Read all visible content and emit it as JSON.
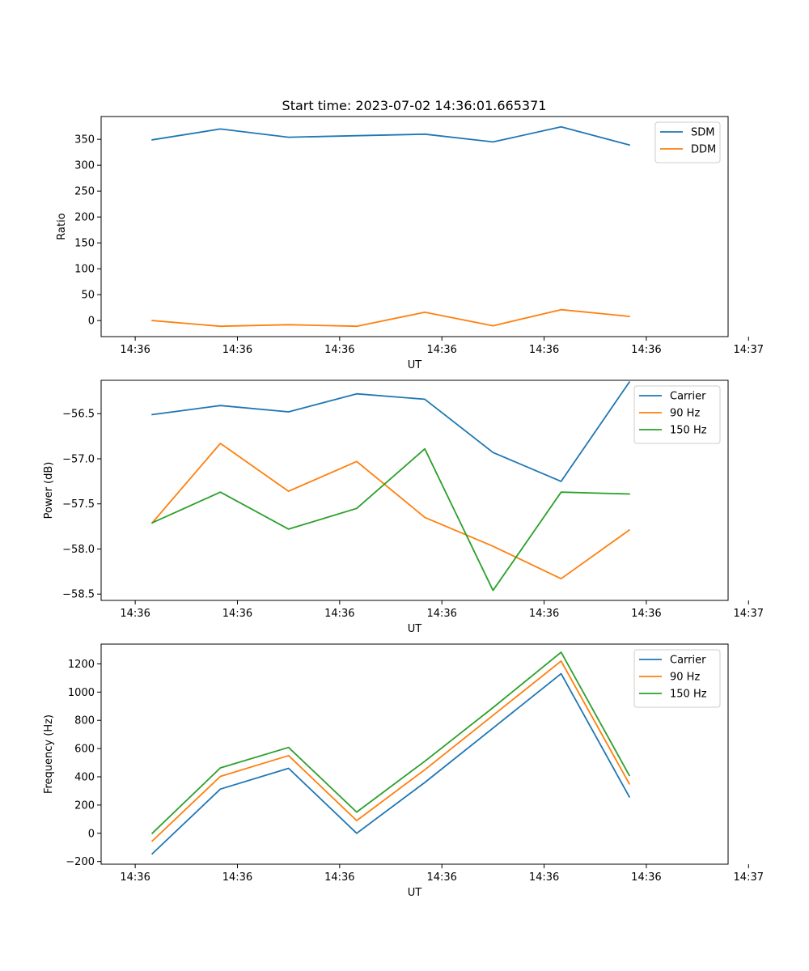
{
  "figure_title": "Start time: 2023-07-02 14:36:01.665371",
  "colors": {
    "blue": "#1f77b4",
    "orange": "#ff7f0e",
    "green": "#2ca02c"
  },
  "chart_data": [
    {
      "type": "line",
      "title": "Start time: 2023-07-02 14:36:01.665371",
      "xlabel": "UT",
      "ylabel": "Ratio",
      "xlim": [
        0,
        9.2
      ],
      "ylim": [
        -31,
        394
      ],
      "x": [
        0.75,
        1.75,
        2.75,
        3.75,
        4.75,
        5.75,
        6.75,
        7.75
      ],
      "xticks": [
        0.5,
        2,
        3.5,
        5,
        6.5,
        8,
        9.5
      ],
      "xtick_labels": [
        "14:36",
        "14:36",
        "14:36",
        "14:36",
        "14:36",
        "14:36",
        "14:37"
      ],
      "yticks": [
        0,
        50,
        100,
        150,
        200,
        250,
        300,
        350
      ],
      "ytick_labels": [
        "0",
        "50",
        "100",
        "150",
        "200",
        "250",
        "300",
        "350"
      ],
      "legend": "top-right",
      "series": [
        {
          "name": "SDM",
          "color": "#1f77b4",
          "values": [
            349,
            370,
            354,
            357,
            360,
            345,
            374,
            339
          ]
        },
        {
          "name": "DDM",
          "color": "#ff7f0e",
          "values": [
            0,
            -11,
            -8,
            -11,
            16,
            -10,
            21,
            8
          ]
        }
      ]
    },
    {
      "type": "line",
      "title": "",
      "xlabel": "UT",
      "ylabel": "Power (dB)",
      "xlim": [
        0,
        9.2
      ],
      "ylim": [
        -58.57,
        -56.13
      ],
      "x": [
        0.75,
        1.75,
        2.75,
        3.75,
        4.75,
        5.75,
        6.75,
        7.75
      ],
      "xticks": [
        0.5,
        2,
        3.5,
        5,
        6.5,
        8,
        9.5
      ],
      "xtick_labels": [
        "14:36",
        "14:36",
        "14:36",
        "14:36",
        "14:36",
        "14:36",
        "14:37"
      ],
      "yticks": [
        -58.5,
        -58.0,
        -57.5,
        -57.0,
        -56.5
      ],
      "ytick_labels": [
        "−58.5",
        "−58.0",
        "−57.5",
        "−57.0",
        "−56.5"
      ],
      "legend": "top-right",
      "series": [
        {
          "name": "Carrier",
          "color": "#1f77b4",
          "values": [
            -56.51,
            -56.41,
            -56.48,
            -56.28,
            -56.34,
            -56.93,
            -57.25,
            -56.15
          ]
        },
        {
          "name": "90 Hz",
          "color": "#ff7f0e",
          "values": [
            -57.71,
            -56.83,
            -57.36,
            -57.03,
            -57.65,
            -57.97,
            -58.33,
            -57.79
          ]
        },
        {
          "name": "150 Hz",
          "color": "#2ca02c",
          "values": [
            -57.71,
            -57.37,
            -57.78,
            -57.55,
            -56.89,
            -58.46,
            -57.37,
            -57.39
          ]
        }
      ]
    },
    {
      "type": "line",
      "title": "",
      "xlabel": "UT",
      "ylabel": "Frequency (Hz)",
      "xlim": [
        0,
        9.2
      ],
      "ylim": [
        -219,
        1340
      ],
      "x": [
        0.75,
        1.75,
        2.75,
        3.75,
        4.75,
        5.75,
        6.75,
        7.75
      ],
      "xticks": [
        0.5,
        2,
        3.5,
        5,
        6.5,
        8,
        9.5
      ],
      "xtick_labels": [
        "14:36",
        "14:36",
        "14:36",
        "14:36",
        "14:36",
        "14:36",
        "14:37"
      ],
      "yticks": [
        -200,
        0,
        200,
        400,
        600,
        800,
        1000,
        1200
      ],
      "ytick_labels": [
        "−200",
        "0",
        "200",
        "400",
        "600",
        "800",
        "1000",
        "1200"
      ],
      "legend": "top-right",
      "series": [
        {
          "name": "Carrier",
          "color": "#1f77b4",
          "values": [
            -145,
            313,
            460,
            0,
            360,
            745,
            1130,
            258
          ]
        },
        {
          "name": "90 Hz",
          "color": "#ff7f0e",
          "values": [
            -55,
            403,
            550,
            90,
            450,
            835,
            1220,
            350
          ]
        },
        {
          "name": "150 Hz",
          "color": "#2ca02c",
          "values": [
            0,
            463,
            608,
            150,
            510,
            890,
            1282,
            410
          ]
        }
      ]
    }
  ]
}
